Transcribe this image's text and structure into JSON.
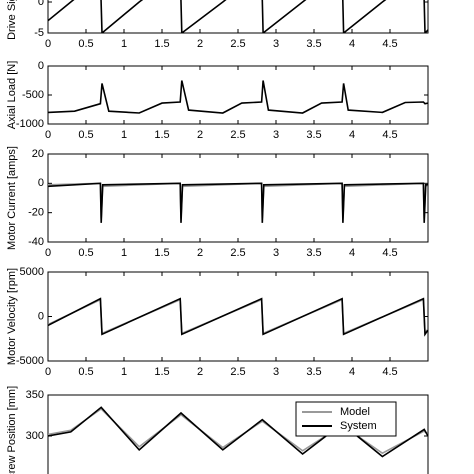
{
  "chart_data": [
    {
      "type": "line",
      "y_label": "Drive Signal [V]",
      "x": [
        0,
        0.35,
        0.69,
        0.71,
        1.2,
        1.74,
        1.76,
        2.3,
        2.81,
        2.83,
        3.35,
        3.87,
        3.89,
        4.4,
        4.94,
        4.96,
        5.0
      ],
      "values": [
        -3,
        0.5,
        4,
        -5,
        0,
        5,
        -5,
        0,
        5,
        -5,
        0,
        5,
        -5,
        0,
        5,
        -5,
        -4.5
      ],
      "color": "#000000",
      "xlim": [
        0,
        5
      ],
      "ylim": [
        -5,
        5
      ],
      "yticks": [
        -5,
        0
      ],
      "xticks": [
        0,
        0.5,
        1,
        1.5,
        2,
        2.5,
        3,
        3.5,
        4,
        4.5
      ]
    },
    {
      "type": "line",
      "y_label": "Axial Load [N]",
      "x": [
        0,
        0.35,
        0.69,
        0.71,
        0.8,
        1.2,
        1.5,
        1.74,
        1.76,
        1.85,
        2.3,
        2.55,
        2.81,
        2.83,
        2.9,
        3.35,
        3.6,
        3.87,
        3.89,
        3.95,
        4.4,
        4.7,
        4.94,
        4.96,
        5.0
      ],
      "values": [
        -800,
        -780,
        -650,
        -300,
        -780,
        -810,
        -640,
        -620,
        -250,
        -760,
        -810,
        -640,
        -620,
        -250,
        -760,
        -810,
        -640,
        -620,
        -300,
        -760,
        -800,
        -630,
        -620,
        -650,
        -640
      ],
      "color": "#000000",
      "xlim": [
        0,
        5
      ],
      "ylim": [
        -1000,
        0
      ],
      "yticks": [
        -1000,
        -500,
        0
      ],
      "xticks": [
        0,
        0.5,
        1,
        1.5,
        2,
        2.5,
        3,
        3.5,
        4,
        4.5
      ]
    },
    {
      "type": "line",
      "y_label": "Motor Current [amps]",
      "x": [
        0,
        0.69,
        0.7,
        0.72,
        1.74,
        1.75,
        1.77,
        2.81,
        2.82,
        2.84,
        3.87,
        3.88,
        3.9,
        4.94,
        4.95,
        4.97,
        5.0
      ],
      "series": [
        {
          "name": "Model",
          "color": "#999999",
          "values": [
            -1,
            0,
            -24,
            -2,
            0,
            -24,
            -2,
            0,
            -24,
            -2,
            0,
            -24,
            -2,
            0,
            -24,
            -2,
            -1
          ]
        },
        {
          "name": "System",
          "color": "#000000",
          "values": [
            -2,
            0,
            -27,
            -1,
            0,
            -27,
            -1,
            0,
            -27,
            -1,
            0,
            -27,
            -1,
            0,
            -27,
            -1,
            -1
          ]
        }
      ],
      "xlim": [
        0,
        5
      ],
      "ylim": [
        -40,
        20
      ],
      "yticks": [
        -40,
        -20,
        0,
        20
      ],
      "xticks": [
        0,
        0.5,
        1,
        1.5,
        2,
        2.5,
        3,
        3.5,
        4,
        4.5
      ]
    },
    {
      "type": "line",
      "y_label": "Motor Velocity [rpm]",
      "x": [
        0,
        0.69,
        0.71,
        1.74,
        1.76,
        2.81,
        2.83,
        3.87,
        3.89,
        4.94,
        4.96,
        5.0
      ],
      "series": [
        {
          "name": "Model",
          "color": "#999999",
          "values": [
            -900,
            1900,
            -1900,
            1900,
            -1900,
            1900,
            -1900,
            1900,
            -1900,
            1900,
            -1900,
            -1400
          ]
        },
        {
          "name": "System",
          "color": "#000000",
          "values": [
            -1000,
            2000,
            -2000,
            2000,
            -2000,
            2000,
            -2000,
            2000,
            -2000,
            2000,
            -2000,
            -1500
          ]
        }
      ],
      "xlim": [
        0,
        5
      ],
      "ylim": [
        -5000,
        5000
      ],
      "yticks": [
        -5000,
        0,
        5000
      ],
      "xticks": [
        0,
        0.5,
        1,
        1.5,
        2,
        2.5,
        3,
        3.5,
        4,
        4.5
      ]
    },
    {
      "type": "line",
      "y_label": "Screw Position [mm]",
      "x": [
        0,
        0.3,
        0.7,
        1.2,
        1.75,
        2.3,
        2.82,
        3.35,
        3.87,
        4.4,
        4.95,
        5.0
      ],
      "series": [
        {
          "name": "Model",
          "color": "#999999",
          "values": [
            302,
            307,
            333,
            287,
            326,
            286,
            318,
            282,
            313,
            279,
            306,
            302
          ]
        },
        {
          "name": "System",
          "color": "#000000",
          "values": [
            300,
            305,
            335,
            283,
            328,
            283,
            320,
            278,
            315,
            275,
            308,
            300
          ]
        }
      ],
      "xlim": [
        0,
        5
      ],
      "ylim": [
        250,
        350
      ],
      "yticks": [
        300,
        350
      ],
      "legend": "upper right"
    }
  ]
}
